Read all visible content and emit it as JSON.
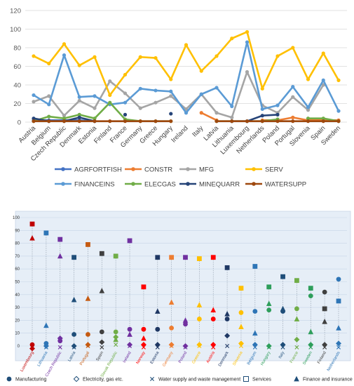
{
  "chart_data": [
    {
      "type": "line",
      "ylim": [
        0,
        120
      ],
      "yticks": [
        0,
        20,
        40,
        60,
        80,
        100,
        120
      ],
      "grid": true,
      "legend_position": "bottom",
      "categories": [
        "Austria",
        "Belgium",
        "Czech Republic",
        "Denmark",
        "Estonia",
        "Finland",
        "France",
        "Germany",
        "Greece",
        "Hungary",
        "Ireland",
        "Italy",
        "Latvia",
        "Lithuania",
        "Luxembourg",
        "Netherlands",
        "Poland",
        "Portugal",
        "Slovenia",
        "Spain",
        "Sweden"
      ],
      "series": [
        {
          "name": "AGRFORTFISH",
          "color": "#4472C4",
          "values": [
            2,
            2,
            2,
            2,
            1,
            null,
            null,
            null,
            null,
            null,
            null,
            null,
            null,
            null,
            null,
            null,
            null,
            null,
            null,
            null,
            null
          ]
        },
        {
          "name": "CONSTR",
          "color": "#ED7D31",
          "values": [
            null,
            null,
            null,
            null,
            null,
            null,
            null,
            null,
            null,
            null,
            null,
            10,
            2,
            null,
            null,
            2,
            2,
            5,
            2,
            2,
            2
          ]
        },
        {
          "name": "MFG",
          "color": "#A5A5A5",
          "values": [
            22,
            28,
            7,
            23,
            15,
            44,
            31,
            15,
            21,
            28,
            14,
            30,
            10,
            5,
            54,
            18,
            10,
            27,
            13,
            40,
            null
          ]
        },
        {
          "name": "SERV",
          "color": "#FFC000",
          "values": [
            71,
            63,
            84,
            61,
            70,
            29,
            51,
            70,
            69,
            46,
            83,
            55,
            71,
            90,
            97,
            36,
            71,
            80,
            46,
            74,
            45
          ]
        },
        {
          "name": "FINANCEINS",
          "color": "#5B9BD5",
          "values": [
            29,
            19,
            72,
            27,
            28,
            19,
            21,
            36,
            34,
            33,
            10,
            30,
            37,
            17,
            86,
            14,
            18,
            38,
            16,
            45,
            12
          ]
        },
        {
          "name": "ELECGAS",
          "color": "#70AD47",
          "values": [
            1,
            6,
            4,
            8,
            4,
            21,
            3,
            1,
            1,
            1,
            null,
            null,
            1,
            1,
            1,
            1,
            3,
            null,
            4,
            4,
            1
          ]
        },
        {
          "name": "MINEQUARR",
          "color": "#264478",
          "values": [
            4,
            1,
            1,
            5,
            1,
            null,
            8,
            null,
            null,
            9,
            null,
            null,
            null,
            1,
            1,
            7,
            8,
            null,
            null,
            null,
            null
          ]
        },
        {
          "name": "WATERSUPP",
          "color": "#9E480E",
          "values": [
            1,
            1,
            1,
            1,
            1,
            1,
            1,
            1,
            1,
            1,
            null,
            null,
            1,
            1,
            1,
            1,
            1,
            1,
            1,
            1,
            1
          ]
        }
      ]
    },
    {
      "type": "scatter",
      "ylim": [
        0,
        100
      ],
      "yticks": [
        0,
        10,
        20,
        30,
        40,
        50,
        60,
        70,
        80,
        90,
        100
      ],
      "legend_position": "bottom",
      "categories": [
        {
          "name": "Luxembourg",
          "color": "#C00000"
        },
        {
          "name": "Lithuania",
          "color": "#2E75B6"
        },
        {
          "name": "Czech Republic",
          "color": "#7030A0"
        },
        {
          "name": "Latvia",
          "color": "#1F4E79"
        },
        {
          "name": "Portugal",
          "color": "#C55A11"
        },
        {
          "name": "Spain",
          "color": "#404040"
        },
        {
          "name": "Slovak Republic",
          "color": "#70AD47"
        },
        {
          "name": "Ireland",
          "color": "#7030A0"
        },
        {
          "name": "Norway",
          "color": "#FF0000"
        },
        {
          "name": "Estonia",
          "color": "#1F3864"
        },
        {
          "name": "Germany",
          "color": "#ED7D31"
        },
        {
          "name": "Poland",
          "color": "#7030A0"
        },
        {
          "name": "Greece",
          "color": "#FFC000"
        },
        {
          "name": "Austria",
          "color": "#FF0000"
        },
        {
          "name": "Denmark",
          "color": "#1F3864"
        },
        {
          "name": "Slovenia",
          "color": "#FFC000"
        },
        {
          "name": "Belgium",
          "color": "#2E75B6"
        },
        {
          "name": "Hungary",
          "color": "#2E9E5B"
        },
        {
          "name": "Italy",
          "color": "#1F4E79"
        },
        {
          "name": "France",
          "color": "#70AD47"
        },
        {
          "name": "Sweden",
          "color": "#2E9E5B"
        },
        {
          "name": "Finland",
          "color": "#404040"
        },
        {
          "name": "Netherlands",
          "color": "#2E75B6"
        }
      ],
      "series": [
        {
          "name": "Manufacturing",
          "marker": "circle",
          "values": [
            1,
            2,
            4,
            9,
            9,
            11,
            11,
            13,
            13,
            13,
            14,
            17,
            21,
            21,
            21,
            26,
            27,
            28,
            27,
            29,
            39,
            42,
            52
          ]
        },
        {
          "name": "Electricity, gas etc.",
          "marker": "diamond",
          "values": [
            -2,
            0,
            6,
            0,
            1,
            3,
            7,
            1,
            1,
            1,
            1,
            0,
            1,
            1,
            8,
            2,
            1,
            0,
            1,
            5,
            1,
            1,
            2
          ]
        },
        {
          "name": "Water supply and waste management",
          "marker": "x",
          "values": [
            -1,
            -1,
            -1,
            -1,
            0,
            -1,
            1,
            0,
            -1,
            -1,
            0,
            -1,
            0,
            -1,
            0,
            0,
            -1,
            -1,
            -1,
            -1,
            -1,
            -1,
            -1
          ]
        },
        {
          "name": "Services",
          "marker": "square",
          "values": [
            95,
            88,
            83,
            69,
            79,
            72,
            70,
            82,
            46,
            69,
            69,
            69,
            68,
            69,
            61,
            45,
            62,
            46,
            54,
            51,
            45,
            29,
            35
          ]
        },
        {
          "name": "Finance and insurance",
          "marker": "triangle",
          "values": [
            84,
            16,
            70,
            36,
            37,
            43,
            5,
            9,
            6,
            27,
            34,
            20,
            32,
            28,
            25,
            15,
            10,
            33,
            29,
            21,
            11,
            19,
            14
          ]
        }
      ]
    }
  ]
}
